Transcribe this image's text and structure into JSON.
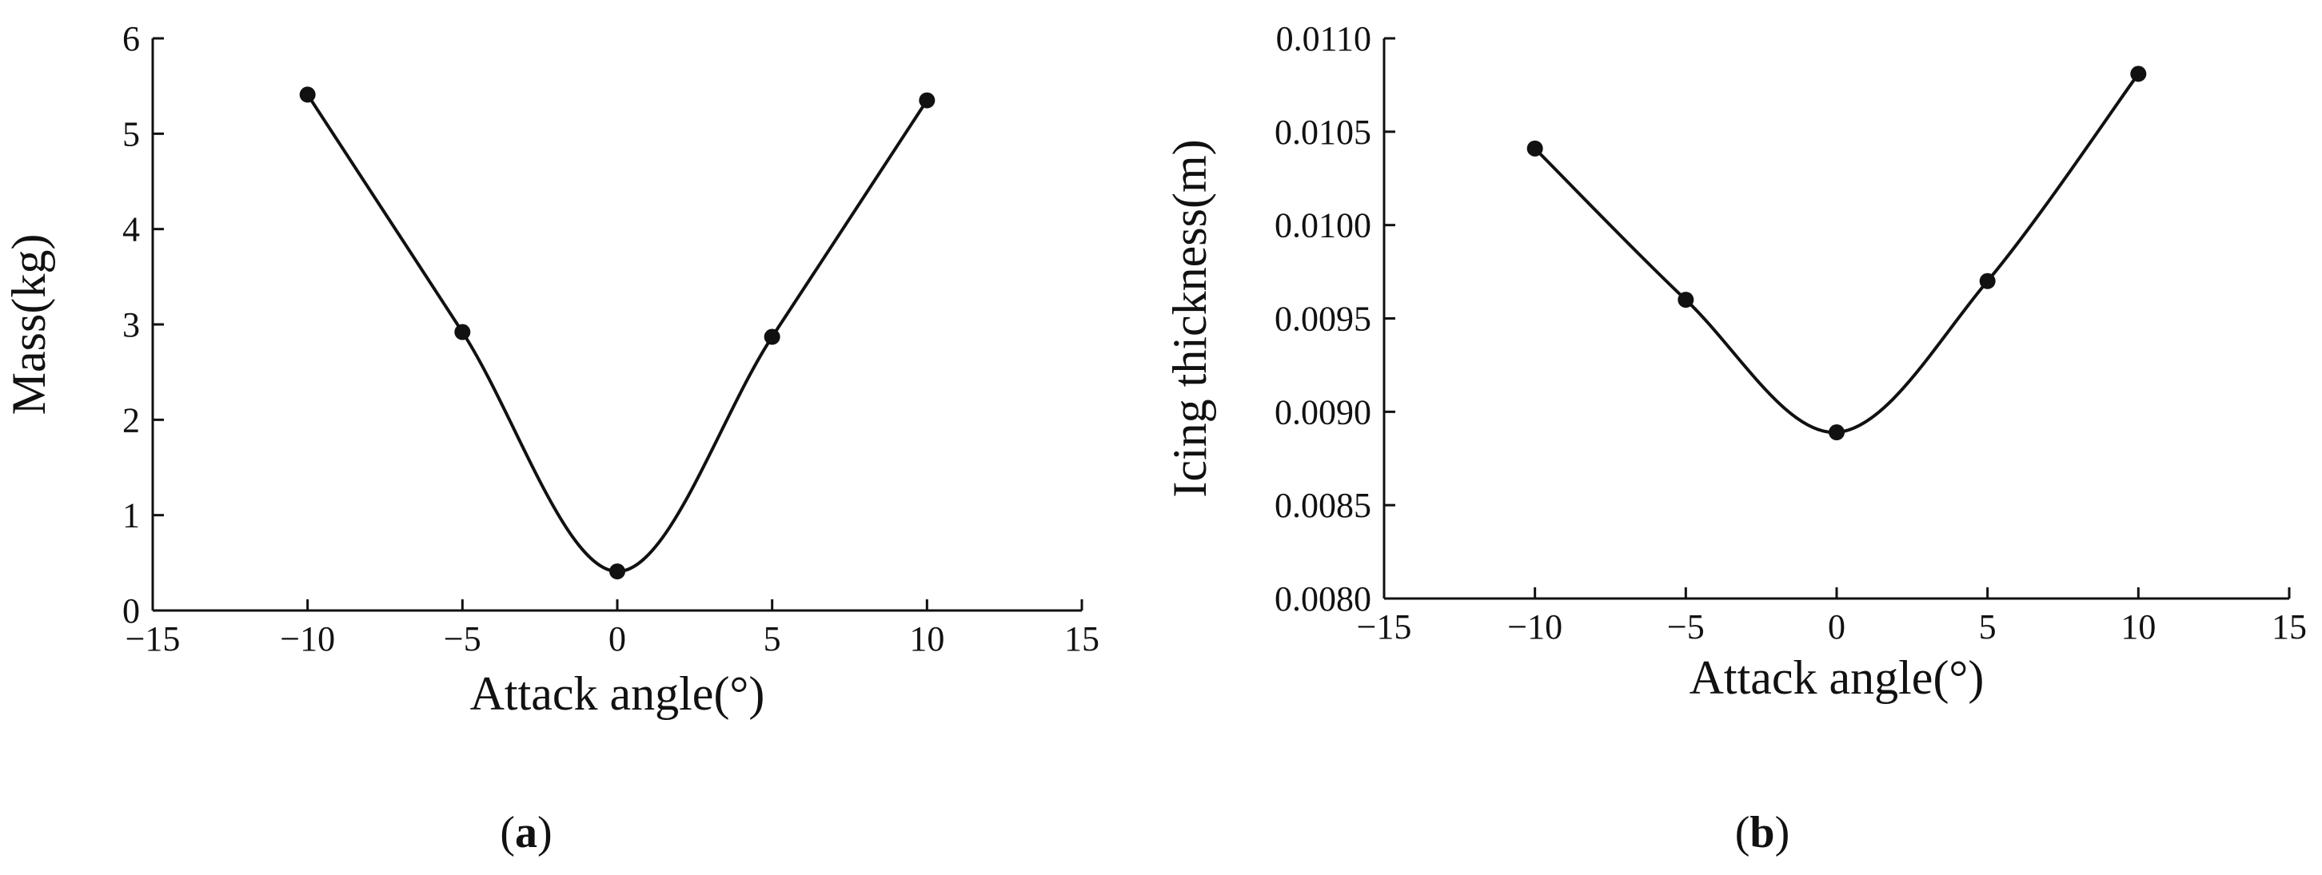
{
  "figure": {
    "background": "#ffffff",
    "ink_color": "#111111"
  },
  "chart_data": [
    {
      "id": "a",
      "type": "line",
      "panel_label": {
        "open": "(",
        "letter": "a",
        "close": ")"
      },
      "title": "",
      "xlabel": "Attack angle(°)",
      "ylabel": "Mass(kg)",
      "xlim": [
        -15,
        15
      ],
      "ylim": [
        0,
        6
      ],
      "xticks": [
        -15,
        -10,
        -5,
        0,
        5,
        10,
        15
      ],
      "xtick_labels": [
        "−15",
        "−10",
        "−5",
        "0",
        "5",
        "10",
        "15"
      ],
      "yticks": [
        0,
        1,
        2,
        3,
        4,
        5,
        6
      ],
      "ytick_labels": [
        "0",
        "1",
        "2",
        "3",
        "4",
        "5",
        "6"
      ],
      "grid": false,
      "legend": "none",
      "series": [
        {
          "x": [
            -10,
            -5,
            0,
            5,
            10
          ],
          "y": [
            5.41,
            2.92,
            0.41,
            2.87,
            5.35
          ],
          "marker": "filled-circle",
          "line": "smooth",
          "color": "#111111"
        }
      ]
    },
    {
      "id": "b",
      "type": "line",
      "panel_label": {
        "open": "(",
        "letter": "b",
        "close": ")"
      },
      "title": "",
      "xlabel": "Attack angle(°)",
      "ylabel": "Icing thickness(m)",
      "xlim": [
        -15,
        15
      ],
      "ylim": [
        0.008,
        0.011
      ],
      "xticks": [
        -15,
        -10,
        -5,
        0,
        5,
        10,
        15
      ],
      "xtick_labels": [
        "−15",
        "−10",
        "−5",
        "0",
        "5",
        "10",
        "15"
      ],
      "yticks": [
        0.008,
        0.0085,
        0.009,
        0.0095,
        0.01,
        0.0105,
        0.011
      ],
      "ytick_labels": [
        "0.0080",
        "0.0085",
        "0.0090",
        "0.0095",
        "0.0100",
        "0.0105",
        "0.0110"
      ],
      "grid": false,
      "legend": "none",
      "series": [
        {
          "x": [
            -10,
            -5,
            0,
            5,
            10
          ],
          "y": [
            0.01041,
            0.0096,
            0.00889,
            0.0097,
            0.01081
          ],
          "marker": "filled-circle",
          "line": "smooth",
          "color": "#111111"
        }
      ]
    }
  ]
}
